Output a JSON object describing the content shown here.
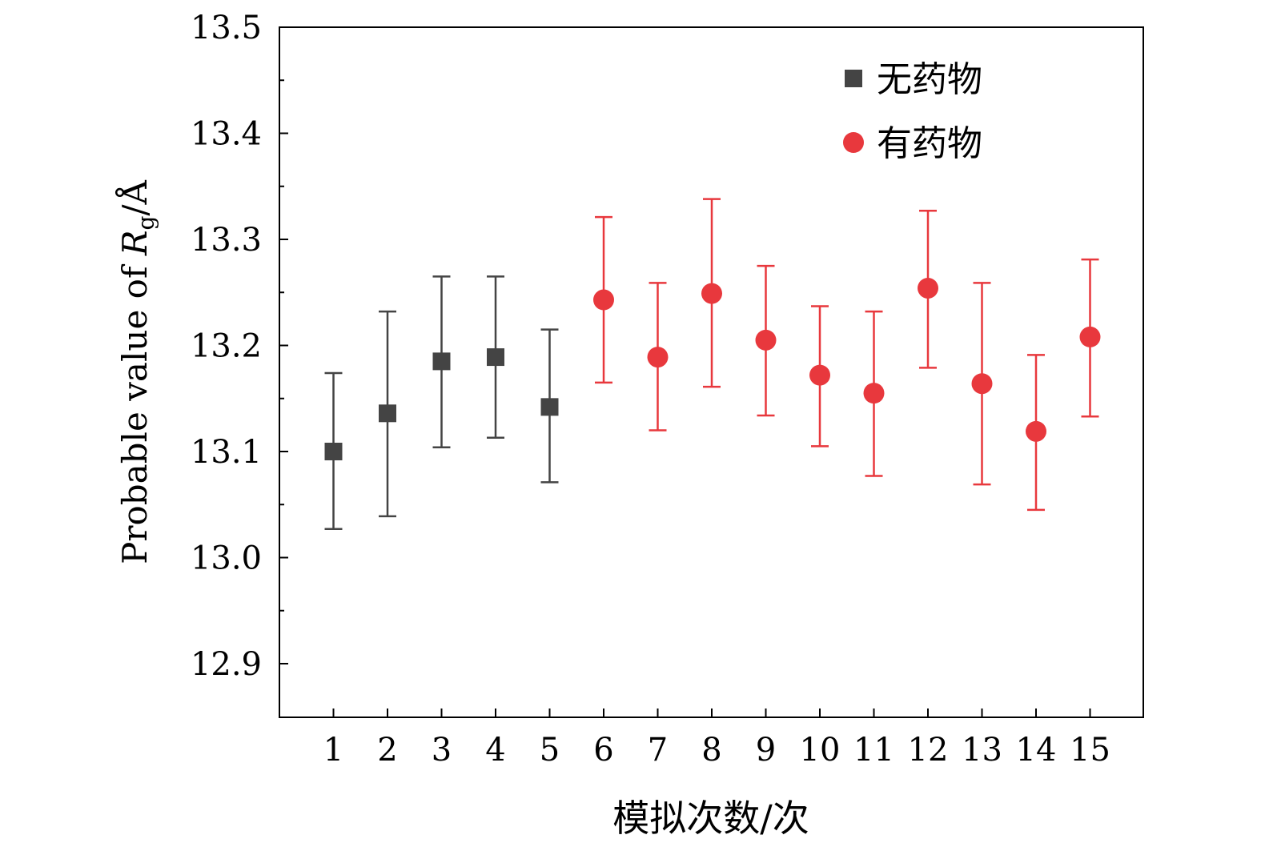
{
  "chart_data": {
    "type": "scatter",
    "xlabel": "模拟次数/次",
    "ylabel": "Probable value of R_g/Å",
    "ylabel_parts": {
      "prefix": "Probable value of ",
      "symbol": "R",
      "subscript": "g",
      "suffix": "/Å"
    },
    "ylim": [
      12.85,
      13.5
    ],
    "yticks": [
      "12.9",
      "13.0",
      "13.1",
      "13.2",
      "13.3",
      "13.4",
      "13.5"
    ],
    "xlim": [
      0,
      16
    ],
    "xticks": [
      "1",
      "2",
      "3",
      "4",
      "5",
      "6",
      "7",
      "8",
      "9",
      "10",
      "11",
      "12",
      "13",
      "14",
      "15"
    ],
    "grid": false,
    "legend_position": "top-right",
    "series": [
      {
        "name": "无药物",
        "marker": "square",
        "color": "#444444",
        "points": [
          {
            "x": 1,
            "y": 13.1,
            "err_low": 13.027,
            "err_high": 13.174
          },
          {
            "x": 2,
            "y": 13.136,
            "err_low": 13.039,
            "err_high": 13.232
          },
          {
            "x": 3,
            "y": 13.185,
            "err_low": 13.104,
            "err_high": 13.265
          },
          {
            "x": 4,
            "y": 13.189,
            "err_low": 13.113,
            "err_high": 13.265
          },
          {
            "x": 5,
            "y": 13.142,
            "err_low": 13.071,
            "err_high": 13.215
          }
        ]
      },
      {
        "name": "有药物",
        "marker": "circle",
        "color": "#e8383d",
        "points": [
          {
            "x": 6,
            "y": 13.243,
            "err_low": 13.165,
            "err_high": 13.321
          },
          {
            "x": 7,
            "y": 13.189,
            "err_low": 13.12,
            "err_high": 13.259
          },
          {
            "x": 8,
            "y": 13.249,
            "err_low": 13.161,
            "err_high": 13.338
          },
          {
            "x": 9,
            "y": 13.205,
            "err_low": 13.134,
            "err_high": 13.275
          },
          {
            "x": 10,
            "y": 13.172,
            "err_low": 13.105,
            "err_high": 13.237
          },
          {
            "x": 11,
            "y": 13.155,
            "err_low": 13.077,
            "err_high": 13.232
          },
          {
            "x": 12,
            "y": 13.254,
            "err_low": 13.179,
            "err_high": 13.327
          },
          {
            "x": 13,
            "y": 13.164,
            "err_low": 13.069,
            "err_high": 13.259
          },
          {
            "x": 14,
            "y": 13.119,
            "err_low": 13.045,
            "err_high": 13.191
          },
          {
            "x": 15,
            "y": 13.208,
            "err_low": 13.133,
            "err_high": 13.281
          }
        ]
      }
    ]
  }
}
